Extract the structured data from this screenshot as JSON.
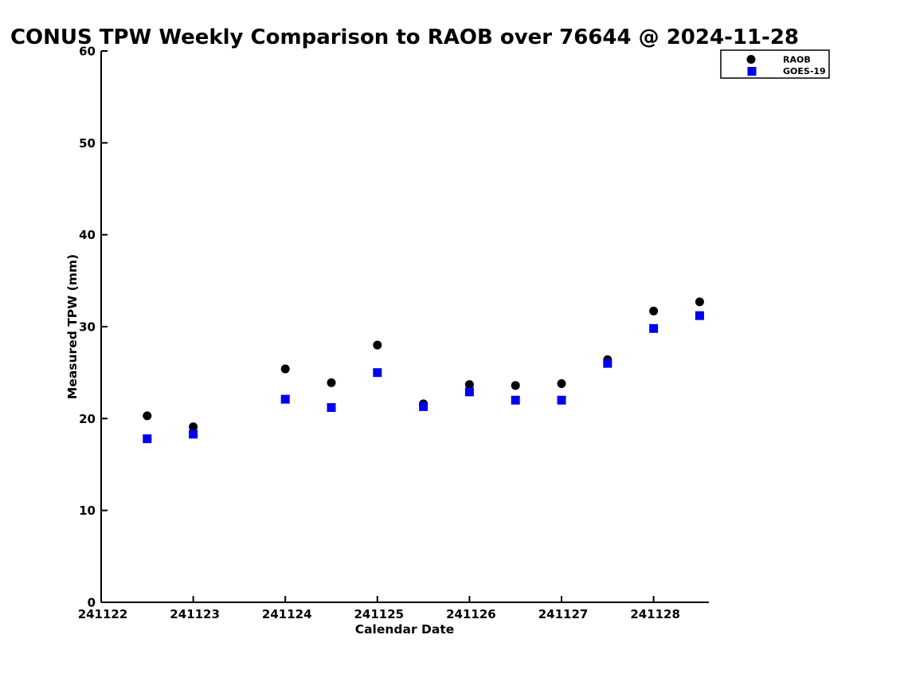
{
  "page": {
    "background": "#ffffff"
  },
  "chart_data": {
    "type": "scatter",
    "title": "CONUS TPW Weekly Comparison to RAOB over 76644 @ 2024-11-28",
    "xlabel": "Calendar Date",
    "ylabel": "Measured TPW (mm)",
    "xlim": [
      241122,
      241128.6
    ],
    "ylim": [
      0,
      60
    ],
    "xticks": [
      241122,
      241123,
      241124,
      241125,
      241126,
      241127,
      241128
    ],
    "xtick_labels": [
      "241122",
      "241123",
      "241124",
      "241125",
      "241126",
      "241127",
      "241128"
    ],
    "yticks": [
      0,
      10,
      20,
      30,
      40,
      50,
      60
    ],
    "ytick_labels": [
      "0",
      "10",
      "20",
      "30",
      "40",
      "50",
      "60"
    ],
    "grid": false,
    "axis_color": "#000000",
    "legend": {
      "position": "top-right",
      "items": [
        {
          "label": "RAOB",
          "marker": "circle",
          "color": "#000000"
        },
        {
          "label": "GOES-19",
          "marker": "square",
          "color": "#0000ee"
        }
      ]
    },
    "series": [
      {
        "name": "RAOB",
        "marker": "circle",
        "color": "#000000",
        "x": [
          241122.5,
          241123.0,
          241124.0,
          241124.5,
          241125.0,
          241125.5,
          241126.0,
          241126.5,
          241127.0,
          241127.5,
          241128.0,
          241128.5
        ],
        "y": [
          20.3,
          19.1,
          25.4,
          23.9,
          28.0,
          21.6,
          23.7,
          23.6,
          23.8,
          26.4,
          31.7,
          32.7
        ]
      },
      {
        "name": "GOES-19",
        "marker": "square",
        "color": "#0000ee",
        "x": [
          241122.5,
          241123.0,
          241124.0,
          241124.5,
          241125.0,
          241125.5,
          241126.0,
          241126.5,
          241127.0,
          241127.5,
          241128.0,
          241128.5
        ],
        "y": [
          17.8,
          18.3,
          22.1,
          21.2,
          25.0,
          21.3,
          22.9,
          22.0,
          22.0,
          26.0,
          29.8,
          31.2
        ]
      }
    ]
  }
}
